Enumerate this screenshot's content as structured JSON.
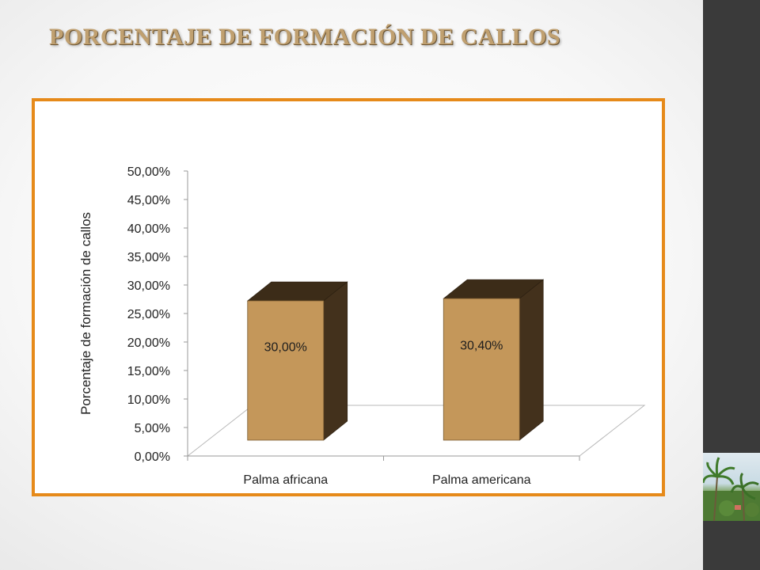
{
  "slide": {
    "title": "PORCENTAJE DE FORMACIÓN DE CALLOS"
  },
  "colors": {
    "frame_border": "#e68a1a",
    "bar_front": "#c4975a",
    "bar_side": "#43311c",
    "bar_top": "#3c2c18",
    "right_bar": "#3a3a3a"
  },
  "chart_data": {
    "type": "bar",
    "style": "3d-column",
    "categories": [
      "Palma africana",
      "Palma americana"
    ],
    "values": [
      30.0,
      30.4
    ],
    "data_labels": [
      "30,00%",
      "30,40%"
    ],
    "ylabel": "Porcentaje de formación de callos",
    "ylim": [
      0,
      50
    ],
    "y_ticks": [
      "0,00%",
      "5,00%",
      "10,00%",
      "15,00%",
      "20,00%",
      "25,00%",
      "30,00%",
      "35,00%",
      "40,00%",
      "45,00%",
      "50,00%"
    ],
    "grid": false,
    "legend": "none"
  }
}
